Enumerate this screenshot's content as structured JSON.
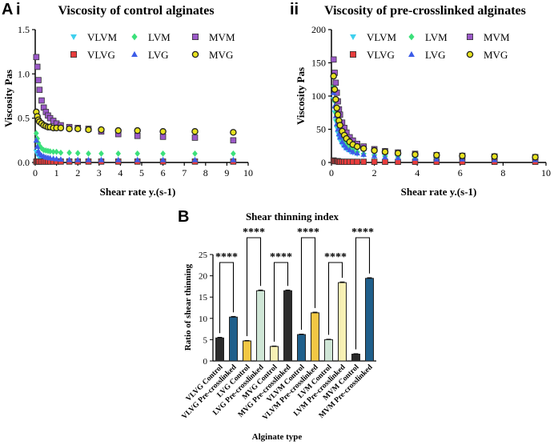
{
  "figure": {
    "panel_A": "A",
    "panel_Ai": "i",
    "panel_Aii": "ii",
    "panel_B": "B"
  },
  "chart_data": [
    {
      "id": "ai",
      "type": "scatter",
      "title": "Viscosity of control alginates",
      "xlabel": "Shear rate y.(s-1)",
      "ylabel": "Viscosity Pas",
      "xlim": [
        0,
        10
      ],
      "ylim": [
        0,
        1.5
      ],
      "xticks": [
        0,
        1,
        2,
        3,
        4,
        5,
        6,
        7,
        8,
        9,
        10
      ],
      "yticks": [
        0.0,
        0.5,
        1.0,
        1.5
      ],
      "ytick_labels": [
        "0.0",
        "0.5",
        "1.0",
        "1.5"
      ],
      "legend": [
        "VLVM",
        "LVM",
        "MVM",
        "VLVG",
        "LVG",
        "MVG"
      ],
      "series": [
        {
          "name": "VLVM",
          "color": "#3fd0ee",
          "marker": "triangle-down",
          "x": [
            0.05,
            0.1,
            0.15,
            0.2,
            0.3,
            0.4,
            0.5,
            0.6,
            0.7,
            0.85,
            1.0,
            1.2,
            1.6,
            2.0,
            2.5,
            3.1,
            3.9,
            4.8,
            6.0,
            7.5,
            9.3
          ],
          "y": [
            0.12,
            0.09,
            0.07,
            0.06,
            0.05,
            0.04,
            0.035,
            0.03,
            0.028,
            0.025,
            0.022,
            0.02,
            0.02,
            0.018,
            0.018,
            0.017,
            0.016,
            0.016,
            0.015,
            0.015,
            0.015
          ]
        },
        {
          "name": "LVM",
          "color": "#3be07a",
          "marker": "diamond",
          "x": [
            0.05,
            0.1,
            0.15,
            0.2,
            0.3,
            0.4,
            0.5,
            0.6,
            0.7,
            0.85,
            1.0,
            1.2,
            1.6,
            2.0,
            2.5,
            3.1,
            3.9,
            4.8,
            6.0,
            7.5,
            9.3
          ],
          "y": [
            0.33,
            0.27,
            0.22,
            0.19,
            0.16,
            0.14,
            0.135,
            0.13,
            0.125,
            0.12,
            0.12,
            0.11,
            0.11,
            0.105,
            0.1,
            0.1,
            0.1,
            0.1,
            0.1,
            0.1,
            0.1
          ]
        },
        {
          "name": "MVM",
          "color": "#9b59c8",
          "marker": "square",
          "x": [
            0.05,
            0.1,
            0.15,
            0.2,
            0.3,
            0.4,
            0.5,
            0.6,
            0.7,
            0.85,
            1.0,
            1.2,
            1.6,
            2.0,
            2.5,
            3.1,
            3.9,
            4.8,
            6.0,
            7.5,
            9.3
          ],
          "y": [
            1.19,
            1.08,
            0.93,
            0.82,
            0.7,
            0.62,
            0.57,
            0.53,
            0.5,
            0.47,
            0.44,
            0.42,
            0.4,
            0.39,
            0.38,
            0.35,
            0.32,
            0.3,
            0.29,
            0.28,
            0.25
          ]
        },
        {
          "name": "VLVG",
          "color": "#e83c3c",
          "marker": "square",
          "x": [
            0.05,
            0.1,
            0.15,
            0.2,
            0.3,
            0.4,
            0.5,
            0.6,
            0.7,
            0.85,
            1.0,
            1.2,
            1.6,
            2.0,
            2.5,
            3.1,
            3.9,
            4.8,
            6.0,
            7.5,
            9.3
          ],
          "y": [
            0.01,
            0.01,
            0.01,
            0.01,
            0.01,
            0.01,
            0.01,
            0.01,
            0.01,
            0.01,
            0.01,
            0.01,
            0.01,
            0.01,
            0.01,
            0.01,
            0.01,
            0.01,
            0.01,
            0.01,
            0.01
          ]
        },
        {
          "name": "LVG",
          "color": "#3c5ce8",
          "marker": "triangle-up",
          "x": [
            0.05,
            0.1,
            0.15,
            0.2,
            0.3,
            0.4,
            0.5,
            0.6,
            0.7,
            0.85,
            1.0,
            1.2,
            1.6,
            2.0,
            2.5,
            3.1,
            3.9,
            4.8,
            6.0,
            7.5,
            9.3
          ],
          "y": [
            0.25,
            0.18,
            0.13,
            0.1,
            0.08,
            0.07,
            0.06,
            0.055,
            0.05,
            0.045,
            0.04,
            0.035,
            0.03,
            0.03,
            0.03,
            0.03,
            0.03,
            0.03,
            0.03,
            0.03,
            0.03
          ]
        },
        {
          "name": "MVG",
          "color": "#e6e21e",
          "marker": "circle",
          "x": [
            0.05,
            0.1,
            0.15,
            0.2,
            0.3,
            0.4,
            0.5,
            0.6,
            0.7,
            0.85,
            1.0,
            1.2,
            1.6,
            2.0,
            2.5,
            3.1,
            3.9,
            4.8,
            6.0,
            7.5,
            9.3
          ],
          "y": [
            0.57,
            0.52,
            0.48,
            0.46,
            0.44,
            0.42,
            0.41,
            0.4,
            0.4,
            0.39,
            0.39,
            0.39,
            0.38,
            0.38,
            0.37,
            0.37,
            0.36,
            0.36,
            0.35,
            0.35,
            0.34
          ]
        }
      ]
    },
    {
      "id": "aii",
      "type": "scatter",
      "title": "Viscosity of pre-crosslinked alginates",
      "xlabel": "Shear rate y.(s-1)",
      "ylabel": "Viscosity Pas",
      "xlim": [
        0,
        10
      ],
      "ylim": [
        0,
        200
      ],
      "xticks": [
        0,
        2,
        4,
        6,
        8,
        10
      ],
      "yticks": [
        0,
        50,
        100,
        150,
        200
      ],
      "ytick_labels": [
        "0",
        "50",
        "100",
        "150",
        "200"
      ],
      "legend": [
        "VLVM",
        "LVM",
        "MVM",
        "VLVG",
        "LVG",
        "MVG"
      ],
      "series": [
        {
          "name": "VLVM",
          "color": "#3fd0ee",
          "marker": "triangle-down",
          "x": [
            0.1,
            0.15,
            0.2,
            0.25,
            0.3,
            0.35,
            0.4,
            0.5,
            0.6,
            0.7,
            0.85,
            1.0,
            1.2,
            1.5,
            2.0,
            2.5,
            3.1,
            3.9,
            4.9,
            6.1,
            7.6,
            9.5
          ],
          "y": [
            95,
            75,
            62,
            52,
            44,
            38,
            33,
            27,
            23,
            20,
            17,
            15,
            13,
            11,
            9,
            8,
            7,
            6,
            5,
            5,
            4,
            4
          ]
        },
        {
          "name": "LVM",
          "color": "#3be07a",
          "marker": "diamond",
          "x": [
            0.1,
            0.15,
            0.2,
            0.25,
            0.3,
            0.35,
            0.4,
            0.5,
            0.6,
            0.7,
            0.85,
            1.0,
            1.2,
            1.5,
            2.0,
            2.5,
            3.1,
            3.9,
            4.9,
            6.1,
            7.6,
            9.5
          ],
          "y": [
            115,
            92,
            75,
            64,
            55,
            48,
            42,
            35,
            30,
            26,
            22,
            19,
            16,
            13,
            11,
            9,
            8,
            7,
            6,
            5,
            5,
            4
          ]
        },
        {
          "name": "MVM",
          "color": "#9b59c8",
          "marker": "square",
          "x": [
            0.1,
            0.15,
            0.2,
            0.25,
            0.3,
            0.35,
            0.4,
            0.5,
            0.6,
            0.7,
            0.85,
            1.0,
            1.2,
            1.5,
            2.0,
            2.5,
            3.1,
            3.9,
            4.9,
            6.1,
            7.6,
            9.5
          ],
          "y": [
            155,
            135,
            120,
            105,
            92,
            80,
            72,
            60,
            52,
            45,
            38,
            33,
            28,
            24,
            20,
            17,
            15,
            13,
            11,
            10,
            9,
            8
          ]
        },
        {
          "name": "VLVG",
          "color": "#e83c3c",
          "marker": "square",
          "x": [
            0.1,
            0.15,
            0.2,
            0.25,
            0.3,
            0.35,
            0.4,
            0.5,
            0.6,
            0.7,
            0.85,
            1.0,
            1.2,
            1.5,
            2.0,
            2.5,
            3.1,
            3.9,
            4.9,
            6.1,
            7.6,
            9.5
          ],
          "y": [
            3,
            2,
            2,
            2,
            2,
            1,
            1,
            1,
            1,
            1,
            1,
            1,
            1,
            1,
            1,
            1,
            1,
            1,
            1,
            1,
            1,
            1
          ]
        },
        {
          "name": "LVG",
          "color": "#3c5ce8",
          "marker": "triangle-up",
          "x": [
            0.1,
            0.15,
            0.2,
            0.25,
            0.3,
            0.35,
            0.4,
            0.5,
            0.6,
            0.7,
            0.85,
            1.0,
            1.2,
            1.5,
            2.0,
            2.5,
            3.1,
            3.9,
            4.9,
            6.1,
            7.6,
            9.5
          ],
          "y": [
            105,
            85,
            70,
            58,
            50,
            43,
            38,
            31,
            26,
            22,
            19,
            16,
            14,
            12,
            10,
            8,
            7,
            6,
            5,
            5,
            4,
            4
          ]
        },
        {
          "name": "MVG",
          "color": "#e6e21e",
          "marker": "circle",
          "x": [
            0.1,
            0.15,
            0.2,
            0.25,
            0.3,
            0.35,
            0.4,
            0.5,
            0.6,
            0.7,
            0.85,
            1.0,
            1.2,
            1.5,
            2.0,
            2.5,
            3.1,
            3.9,
            4.9,
            6.1,
            7.6,
            9.5
          ],
          "y": [
            130,
            110,
            95,
            82,
            72,
            63,
            56,
            47,
            41,
            36,
            31,
            27,
            24,
            21,
            18,
            16,
            14,
            12,
            11,
            10,
            9,
            8
          ]
        }
      ]
    },
    {
      "id": "b",
      "type": "bar",
      "title": "Shear thinning index",
      "xlabel": "Alginate type",
      "ylabel": "Ratio of shear thinning",
      "ylim": [
        0,
        25
      ],
      "yticks": [
        0,
        5,
        10,
        15,
        20,
        25
      ],
      "categories": [
        "VLVG Control",
        "VLVG Pre-crosslinked",
        "LVG Control",
        "LVG Pre-crosslinked",
        "MVG Control",
        "MVG Pre-crosslinked",
        "VLVM Control",
        "VLVM Pre-crosslinked",
        "LVM Control",
        "LVM Pre-crosslinked",
        "MVM Control",
        "MVM Pre-crosslinked"
      ],
      "values": [
        5.4,
        10.3,
        4.7,
        16.5,
        3.4,
        16.5,
        6.2,
        11.3,
        5.0,
        18.4,
        1.6,
        19.4
      ],
      "errors": [
        0.15,
        0.15,
        0.1,
        0.15,
        0.1,
        0.15,
        0.1,
        0.15,
        0.1,
        0.15,
        0.1,
        0.15
      ],
      "colors": [
        "#2b2b2b",
        "#1f5f8b",
        "#f2c744",
        "#cfe6d6",
        "#f7f0b4",
        "#2b2b2b",
        "#1f5f8b",
        "#f2c744",
        "#cfe6d6",
        "#f7f0b4",
        "#2b2b2b",
        "#1f5f8b"
      ],
      "significance": [
        {
          "pair": [
            0,
            1
          ],
          "label": "****",
          "level": "low"
        },
        {
          "pair": [
            2,
            3
          ],
          "label": "****",
          "level": "high"
        },
        {
          "pair": [
            4,
            5
          ],
          "label": "****",
          "level": "low"
        },
        {
          "pair": [
            6,
            7
          ],
          "label": "****",
          "level": "high"
        },
        {
          "pair": [
            8,
            9
          ],
          "label": "****",
          "level": "low"
        },
        {
          "pair": [
            10,
            11
          ],
          "label": "****",
          "level": "high"
        }
      ]
    }
  ]
}
